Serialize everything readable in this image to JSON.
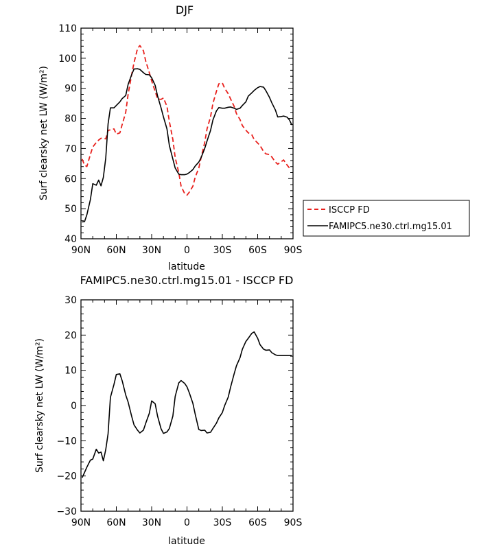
{
  "chart_data": [
    {
      "type": "line",
      "title": "DJF",
      "xlabel": "latitude",
      "ylabel": "Surf clearsky net LW (W/m²)",
      "xlim": [
        -90,
        90
      ],
      "ylim": [
        40,
        110
      ],
      "x_ticks": [
        -90,
        -60,
        -30,
        0,
        30,
        60,
        90
      ],
      "x_tick_labels": [
        "90N",
        "60N",
        "30N",
        "0",
        "30S",
        "60S",
        "90S"
      ],
      "y_ticks": [
        40,
        50,
        60,
        70,
        80,
        90,
        100,
        110
      ],
      "y_tick_labels": [
        "40",
        "50",
        "60",
        "70",
        "80",
        "90",
        "100",
        "110"
      ],
      "legend_placement": "outside-right",
      "series": [
        {
          "name": "ISCCP FD",
          "color": "#e8201c",
          "style": "dashed",
          "x": [
            -89,
            -87,
            -85,
            -82,
            -80,
            -77,
            -75,
            -73,
            -71,
            -69,
            -67,
            -65,
            -62,
            -60,
            -57,
            -55,
            -52,
            -50,
            -47,
            -45,
            -42,
            -40,
            -37,
            -35,
            -32,
            -30,
            -27,
            -25,
            -22,
            -20,
            -17,
            -15,
            -12,
            -10,
            -7,
            -5,
            -2,
            0,
            2,
            5,
            7,
            10,
            12,
            15,
            17,
            20,
            22,
            25,
            27,
            30,
            32,
            35,
            37,
            40,
            42,
            45,
            47,
            50,
            52,
            55,
            57,
            60,
            62,
            65,
            67,
            70,
            72,
            75,
            77,
            80,
            82,
            85,
            87,
            89
          ],
          "y": [
            66.5,
            64.5,
            64,
            68,
            70.5,
            72,
            72.8,
            73.4,
            73.4,
            73.2,
            76,
            76.2,
            76.5,
            74.8,
            75.2,
            78,
            82,
            88,
            94.5,
            98.5,
            103.2,
            104.2,
            102.5,
            99,
            95.2,
            92.5,
            89,
            86.5,
            86.3,
            86.8,
            84,
            79,
            73,
            67,
            62,
            57.5,
            55,
            54.5,
            55.5,
            57.5,
            60.5,
            63.5,
            67,
            72,
            76.5,
            80.5,
            85,
            89,
            91.5,
            91.8,
            90,
            88.2,
            86.5,
            84,
            81.6,
            79.6,
            77.6,
            76.1,
            75.2,
            74.6,
            73,
            71.8,
            71,
            69,
            68.2,
            68,
            67.2,
            65.5,
            64.8,
            65.6,
            66.2,
            64.5,
            63.5,
            63.2
          ]
        },
        {
          "name": "FAMIPC5.ne30.ctrl.mg15.01",
          "color": "#000000",
          "style": "solid",
          "x": [
            -89,
            -87,
            -85,
            -82,
            -80,
            -77,
            -75,
            -73,
            -71,
            -69,
            -67,
            -65,
            -62,
            -60,
            -57,
            -55,
            -52,
            -50,
            -47,
            -45,
            -42,
            -40,
            -37,
            -35,
            -32,
            -30,
            -27,
            -25,
            -22,
            -20,
            -17,
            -15,
            -12,
            -10,
            -7,
            -5,
            -2,
            0,
            2,
            5,
            7,
            10,
            12,
            15,
            17,
            20,
            22,
            25,
            27,
            30,
            32,
            35,
            37,
            40,
            42,
            45,
            47,
            50,
            52,
            55,
            57,
            60,
            62,
            65,
            67,
            70,
            72,
            75,
            77,
            80,
            82,
            85,
            87,
            89
          ],
          "y": [
            45.6,
            45.7,
            48,
            53,
            58.3,
            57.8,
            59.5,
            57.6,
            60.4,
            66.8,
            78.2,
            83.5,
            83.5,
            84.3,
            85.5,
            86.6,
            87.6,
            91.3,
            94.5,
            96.4,
            96.5,
            96.3,
            95.2,
            94.6,
            94.5,
            93.5,
            91,
            87.5,
            83.5,
            80.5,
            76.5,
            71,
            66.5,
            63.5,
            61.5,
            61.3,
            61.3,
            61.5,
            62,
            63,
            64.2,
            65.5,
            67,
            70,
            72.5,
            76,
            79.5,
            82.5,
            83.6,
            83.4,
            83.4,
            83.7,
            83.8,
            83.4,
            83,
            83.4,
            84.3,
            85.5,
            87.4,
            88.5,
            89.3,
            90.2,
            90.6,
            90.4,
            89.2,
            87,
            85.2,
            82.8,
            80.5,
            80.6,
            80.8,
            80.4,
            79.5,
            77.8
          ]
        }
      ]
    },
    {
      "type": "line",
      "title": "FAMIPC5.ne30.ctrl.mg15.01 - ISCCP FD",
      "xlabel": "latitude",
      "ylabel": "Surf clearsky net LW (W/m²)",
      "xlim": [
        -90,
        90
      ],
      "ylim": [
        -30,
        30
      ],
      "x_ticks": [
        -90,
        -60,
        -30,
        0,
        30,
        60,
        90
      ],
      "x_tick_labels": [
        "90N",
        "60N",
        "30N",
        "0",
        "30S",
        "60S",
        "90S"
      ],
      "y_ticks": [
        -30,
        -20,
        -10,
        0,
        10,
        20,
        30
      ],
      "y_tick_labels": [
        "−30",
        "−20",
        "−10",
        "0",
        "10",
        "20",
        "30"
      ],
      "series": [
        {
          "color": "#000000",
          "style": "solid",
          "x": [
            -89,
            -87,
            -85,
            -82,
            -80,
            -77,
            -75,
            -73,
            -71,
            -69,
            -67,
            -65,
            -62,
            -60,
            -57,
            -55,
            -52,
            -50,
            -47,
            -45,
            -42,
            -40,
            -37,
            -35,
            -32,
            -30,
            -27,
            -25,
            -22,
            -20,
            -17,
            -15,
            -12,
            -10,
            -7,
            -5,
            -2,
            0,
            2,
            5,
            7,
            10,
            12,
            15,
            17,
            20,
            22,
            25,
            27,
            30,
            32,
            35,
            37,
            40,
            42,
            45,
            47,
            50,
            52,
            55,
            57,
            60,
            62,
            65,
            67,
            70,
            72,
            75,
            77,
            80,
            82,
            85,
            87,
            89
          ],
          "y": [
            -20.5,
            -19,
            -17.5,
            -15.5,
            -15.2,
            -12.4,
            -13.5,
            -13.2,
            -15.7,
            -12.5,
            -8,
            2.3,
            6,
            8.8,
            9,
            7,
            3,
            1,
            -3,
            -5.5,
            -7,
            -7.8,
            -7,
            -5,
            -2.2,
            1.3,
            0.5,
            -3,
            -6.6,
            -7.9,
            -7.5,
            -6.5,
            -3,
            2.6,
            6.4,
            7.1,
            6.3,
            5.3,
            3.6,
            0.6,
            -2.5,
            -6.8,
            -7.1,
            -7,
            -7.8,
            -7.6,
            -6.5,
            -5,
            -3.5,
            -2,
            0,
            2.4,
            5.2,
            9,
            11.3,
            13.6,
            16,
            18.2,
            19.1,
            20.5,
            20.9,
            19.1,
            17.3,
            16,
            15.7,
            15.8,
            15,
            14.4,
            14.2,
            14.2,
            14.2,
            14.2,
            14.2,
            14.2
          ]
        }
      ]
    }
  ]
}
